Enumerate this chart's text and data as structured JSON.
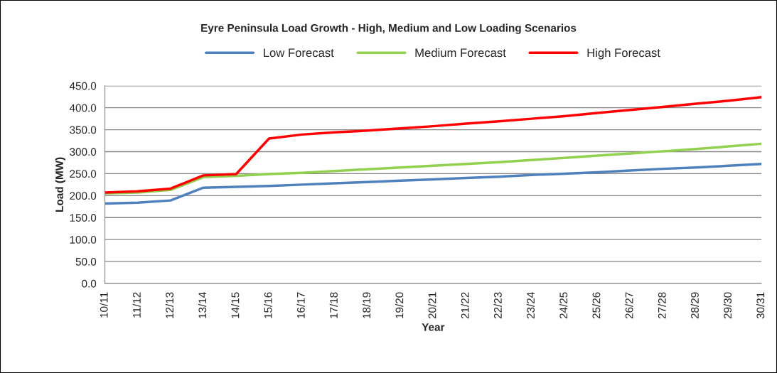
{
  "chart_data": {
    "type": "line",
    "title": "Eyre Peninsula Load Growth - High, Medium and Low Loading Scenarios",
    "xlabel": "Year",
    "ylabel": "Load (MW)",
    "categories": [
      "10/11",
      "11/12",
      "12/13",
      "13/14",
      "14/15",
      "15/16",
      "16/17",
      "17/18",
      "18/19",
      "19/20",
      "20/21",
      "21/22",
      "22/23",
      "23/24",
      "24/25",
      "25/26",
      "26/27",
      "27/28",
      "28/29",
      "29/30",
      "30/31"
    ],
    "series": [
      {
        "name": "Low Forecast",
        "color": "#4f81bd",
        "values": [
          182,
          184,
          189,
          218,
          220,
          222,
          225,
          228,
          231,
          234,
          237,
          240,
          243,
          247,
          250,
          253,
          257,
          261,
          264,
          268,
          272
        ]
      },
      {
        "name": "Medium Forecast",
        "color": "#92d050",
        "values": [
          205,
          207,
          213,
          242,
          245,
          249,
          252,
          256,
          260,
          264,
          268,
          272,
          276,
          281,
          286,
          291,
          296,
          301,
          306,
          312,
          318
        ]
      },
      {
        "name": "High Forecast",
        "color": "#ff0000",
        "values": [
          207,
          210,
          216,
          246,
          249,
          330,
          339,
          344,
          348,
          353,
          358,
          364,
          369,
          375,
          381,
          388,
          395,
          402,
          409,
          416,
          424
        ]
      }
    ],
    "ylim": [
      0,
      450
    ],
    "yticks": [
      {
        "value": 0,
        "label": "0.0"
      },
      {
        "value": 50,
        "label": "50.0"
      },
      {
        "value": 100,
        "label": "100.0"
      },
      {
        "value": 150,
        "label": "150.0"
      },
      {
        "value": 200,
        "label": "200.0"
      },
      {
        "value": 250,
        "label": "250.0"
      },
      {
        "value": 300,
        "label": "300.0"
      },
      {
        "value": 350,
        "label": "350.0"
      },
      {
        "value": 400,
        "label": "400.0"
      },
      {
        "value": 450,
        "label": "450.0"
      }
    ],
    "grid": "y",
    "legend": "top",
    "marker": "none",
    "line_style": "solid"
  }
}
